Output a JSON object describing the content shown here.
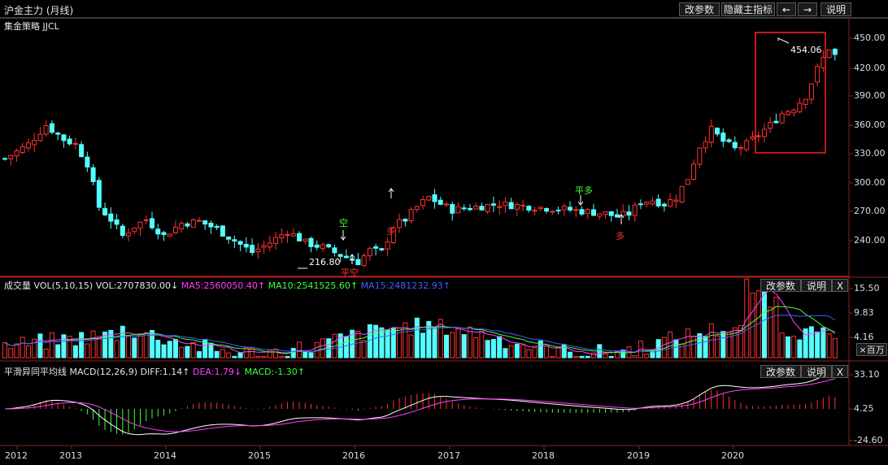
{
  "window": {
    "title": "沪金主力 (月线)"
  },
  "toolbar": {
    "edit_params": "改参数",
    "hide_main": "隐藏主指标",
    "left_arrow": "←",
    "right_arrow": "→",
    "help": "说明"
  },
  "main_panel": {
    "strategy_label": "集金策略  JJCL",
    "y_ticks": [
      "450.00",
      "420.00",
      "390.00",
      "360.00",
      "330.00",
      "300.00",
      "270.00",
      "240.00"
    ],
    "annotations": {
      "high_price": "454.06",
      "low_price": "216.80",
      "kong": "空",
      "ping_kong": "平空",
      "duo_1": "多",
      "ping_duo": "平多",
      "duo_2": "多"
    },
    "colors": {
      "up": "#ff3232",
      "down": "#54ffff",
      "box": "#ff2020"
    }
  },
  "volume_panel": {
    "name": "成交量",
    "indicator": "VOL(5,10,15)",
    "vol": "VOL:2707830.00↓",
    "ma5": "MA5:2560050.40↑",
    "ma10": "MA10:2541525.60↑",
    "ma15": "MA15:2481232.93↑",
    "edit_params": "改参数",
    "help": "说明",
    "close": "X",
    "y_ticks": [
      "15.50",
      "9.83",
      "4.16"
    ],
    "unit_button": "×百万",
    "colors": {
      "ma5": "#ff40ff",
      "ma10": "#40ff40",
      "ma15": "#4040ff"
    }
  },
  "macd_panel": {
    "name": "平滑异同平均线",
    "indicator": "MACD(12,26,9)",
    "diff": "DIFF:1.14↑",
    "dea": "DEA:1.79↓",
    "macd": "MACD:-1.30↑",
    "edit_params": "改参数",
    "help": "说明",
    "close": "X",
    "y_ticks": [
      "33.10",
      "4.25",
      "-24.60"
    ],
    "colors": {
      "diff": "#ffffff",
      "dea": "#ff40ff"
    }
  },
  "x_axis": {
    "labels": [
      "2012",
      "2013",
      "2014",
      "2015",
      "2016",
      "2017",
      "2018",
      "2019",
      "2020"
    ]
  }
}
